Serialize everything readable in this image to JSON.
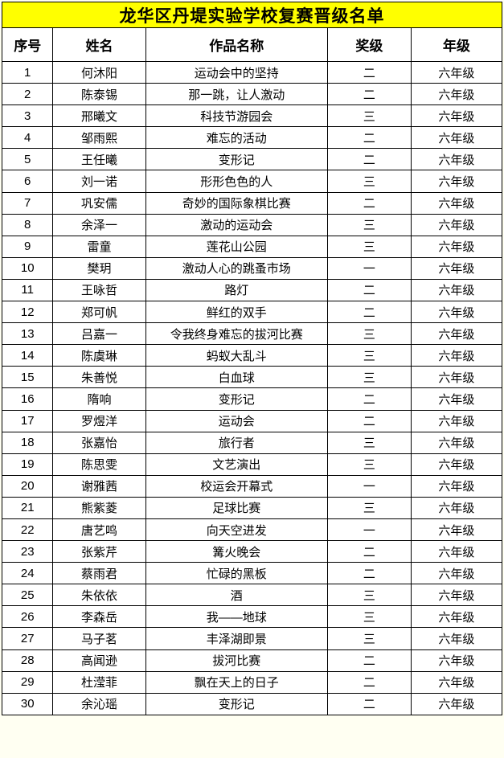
{
  "title": "龙华区丹堤实验学校复赛晋级名单",
  "colors": {
    "title_background": "#FFFF00",
    "border": "#000000",
    "page_background": "#FFFFF2",
    "cell_background": "#FFFFFF",
    "text": "#000000"
  },
  "table": {
    "headers": {
      "no": "序号",
      "name": "姓名",
      "work": "作品名称",
      "award": "奖级",
      "grade": "年级"
    },
    "rows": [
      {
        "no": "1",
        "name": "何沐阳",
        "work": "运动会中的坚持",
        "award": "二",
        "grade": "六年级"
      },
      {
        "no": "2",
        "name": "陈泰锡",
        "work": "那一跳，让人激动",
        "award": "二",
        "grade": "六年级"
      },
      {
        "no": "3",
        "name": "邢曦文",
        "work": "科技节游园会",
        "award": "三",
        "grade": "六年级"
      },
      {
        "no": "4",
        "name": "邹雨熙",
        "work": "难忘的活动",
        "award": "二",
        "grade": "六年级"
      },
      {
        "no": "5",
        "name": "王任曦",
        "work": "变形记",
        "award": "二",
        "grade": "六年级"
      },
      {
        "no": "6",
        "name": "刘一诺",
        "work": "形形色色的人",
        "award": "三",
        "grade": "六年级"
      },
      {
        "no": "7",
        "name": "巩安儒",
        "work": "奇妙的国际象棋比赛",
        "award": "二",
        "grade": "六年级"
      },
      {
        "no": "8",
        "name": "余泽一",
        "work": "激动的运动会",
        "award": "三",
        "grade": "六年级"
      },
      {
        "no": "9",
        "name": "雷童",
        "work": "莲花山公园",
        "award": "三",
        "grade": "六年级"
      },
      {
        "no": "10",
        "name": "樊玥",
        "work": "激动人心的跳蚤市场",
        "award": "一",
        "grade": "六年级"
      },
      {
        "no": "11",
        "name": "王咏哲",
        "work": "路灯",
        "award": "二",
        "grade": "六年级"
      },
      {
        "no": "12",
        "name": "郑可帆",
        "work": "鲜红的双手",
        "award": "二",
        "grade": "六年级"
      },
      {
        "no": "13",
        "name": "吕嘉一",
        "work": "令我终身难忘的拔河比赛",
        "award": "三",
        "grade": "六年级"
      },
      {
        "no": "14",
        "name": "陈虞琳",
        "work": "蚂蚁大乱斗",
        "award": "三",
        "grade": "六年级"
      },
      {
        "no": "15",
        "name": "朱善悦",
        "work": "白血球",
        "award": "三",
        "grade": "六年级"
      },
      {
        "no": "16",
        "name": "隋响",
        "work": "变形记",
        "award": "二",
        "grade": "六年级"
      },
      {
        "no": "17",
        "name": "罗煜洋",
        "work": "运动会",
        "award": "二",
        "grade": "六年级"
      },
      {
        "no": "18",
        "name": "张嘉怡",
        "work": "旅行者",
        "award": "三",
        "grade": "六年级"
      },
      {
        "no": "19",
        "name": "陈思雯",
        "work": "文艺演出",
        "award": "三",
        "grade": "六年级"
      },
      {
        "no": "20",
        "name": "谢雅茜",
        "work": "校运会开幕式",
        "award": "一",
        "grade": "六年级"
      },
      {
        "no": "21",
        "name": "熊紫菱",
        "work": "足球比赛",
        "award": "三",
        "grade": "六年级"
      },
      {
        "no": "22",
        "name": "唐艺鸣",
        "work": "向天空进发",
        "award": "一",
        "grade": "六年级"
      },
      {
        "no": "23",
        "name": "张紫芹",
        "work": "篝火晚会",
        "award": "二",
        "grade": "六年级"
      },
      {
        "no": "24",
        "name": "蔡雨君",
        "work": "忙碌的黑板",
        "award": "二",
        "grade": "六年级"
      },
      {
        "no": "25",
        "name": "朱依依",
        "work": "酒",
        "award": "三",
        "grade": "六年级"
      },
      {
        "no": "26",
        "name": "李森岳",
        "work": "我——地球",
        "award": "三",
        "grade": "六年级"
      },
      {
        "no": "27",
        "name": "马子茗",
        "work": "丰泽湖即景",
        "award": "三",
        "grade": "六年级"
      },
      {
        "no": "28",
        "name": "高闻逊",
        "work": "拔河比赛",
        "award": "二",
        "grade": "六年级"
      },
      {
        "no": "29",
        "name": "杜滢菲",
        "work": "飘在天上的日子",
        "award": "二",
        "grade": "六年级"
      },
      {
        "no": "30",
        "name": "余沁瑶",
        "work": "变形记",
        "award": "二",
        "grade": "六年级"
      }
    ]
  }
}
